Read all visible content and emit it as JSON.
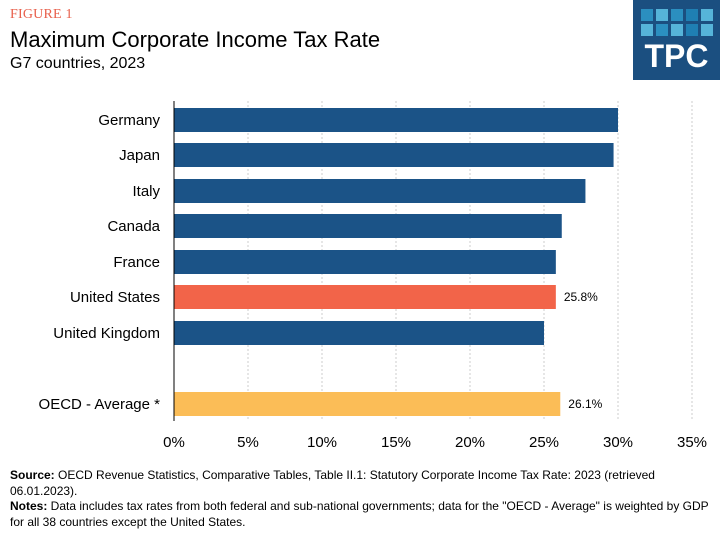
{
  "header": {
    "figure_label": "FIGURE 1",
    "title": "Maximum Corporate Income Tax Rate",
    "subtitle": "G7 countries, 2023"
  },
  "logo": {
    "text": "TPC",
    "bg_color": "#1b4f80",
    "square_colors": [
      "#2b8fc0",
      "#56b4d9",
      "#2b8fc0",
      "#1f7fb3",
      "#56b4d9",
      "#56b4d9",
      "#2b8fc0",
      "#56b4d9",
      "#1f7fb3",
      "#56b4d9"
    ]
  },
  "colors": {
    "default_bar": "#1b5387",
    "highlight_bar": "#f26449",
    "average_bar": "#fbbd57",
    "gridline": "#cccccc",
    "axis": "#000000"
  },
  "chart_data": {
    "type": "bar",
    "orientation": "horizontal",
    "title": "Maximum Corporate Income Tax Rate",
    "subtitle": "G7 countries, 2023",
    "xlabel": "",
    "ylabel": "",
    "xlim": [
      0,
      35
    ],
    "x_ticks": [
      0,
      5,
      10,
      15,
      20,
      25,
      30,
      35
    ],
    "x_tick_labels": [
      "0%",
      "5%",
      "10%",
      "15%",
      "20%",
      "25%",
      "30%",
      "35%"
    ],
    "grid": "vertical dashed",
    "legend": "none",
    "categories": [
      "Germany",
      "Japan",
      "Italy",
      "Canada",
      "France",
      "United States",
      "United Kingdom",
      "OECD - Average *"
    ],
    "values": [
      30.0,
      29.7,
      27.8,
      26.2,
      25.8,
      25.8,
      25.0,
      26.1
    ],
    "bar_roles": [
      "default",
      "default",
      "default",
      "default",
      "default",
      "highlight",
      "default",
      "average"
    ],
    "data_labels": [
      "",
      "",
      "",
      "",
      "",
      "25.8%",
      "",
      "26.1%"
    ]
  },
  "footer": {
    "source_label": "Source:",
    "source_text": " OECD Revenue Statistics, Comparative Tables, Table II.1: Statutory Corporate Income Tax Rate: 2023 (retrieved 06.01.2023).",
    "notes_label": "Notes:",
    "notes_text": " Data includes tax rates from both federal and sub-national governments; data for the \"OECD - Average\" is weighted by GDP for all 38 countries except the United States."
  }
}
